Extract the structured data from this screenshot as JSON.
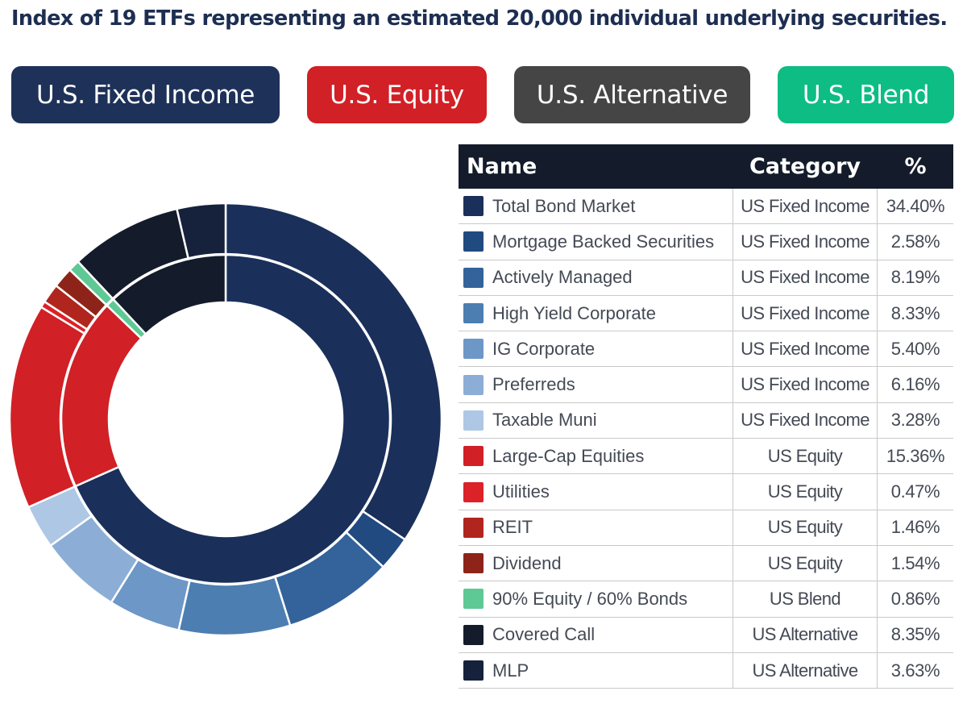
{
  "title": "Index of 19 ETFs representing an estimated 20,000 individual underlying securities.",
  "legend_pills": [
    {
      "label": "U.S. Fixed Income",
      "color": "#1e3158"
    },
    {
      "label": "U.S. Equity",
      "color": "#d12026"
    },
    {
      "label": "U.S. Alternative",
      "color": "#454545"
    },
    {
      "label": "U.S. Blend",
      "color": "#0dbd83"
    }
  ],
  "table": {
    "headers": {
      "name": "Name",
      "category": "Category",
      "pct": "%"
    }
  },
  "chart_data": {
    "type": "pie",
    "variant": "two-ring donut (outer ring: individual ETFs, inner ring: category totals)",
    "series_outer": [
      {
        "name": "Total Bond Market",
        "category": "US Fixed Income",
        "pct_label": "34.40%",
        "value": 34.4,
        "color": "#1a305a"
      },
      {
        "name": "Mortgage Backed Securities",
        "category": "US Fixed Income",
        "pct_label": "2.58%",
        "value": 2.58,
        "color": "#204a80"
      },
      {
        "name": "Actively Managed",
        "category": "US Fixed Income",
        "pct_label": "8.19%",
        "value": 8.19,
        "color": "#33639a"
      },
      {
        "name": "High Yield Corporate",
        "category": "US Fixed Income",
        "pct_label": "8.33%",
        "value": 8.33,
        "color": "#4c7eb1"
      },
      {
        "name": "IG Corporate",
        "category": "US Fixed Income",
        "pct_label": "5.40%",
        "value": 5.4,
        "color": "#6d97c7"
      },
      {
        "name": "Preferreds",
        "category": "US Fixed Income",
        "pct_label": "6.16%",
        "value": 6.16,
        "color": "#8caed6"
      },
      {
        "name": "Taxable Muni",
        "category": "US Fixed Income",
        "pct_label": "3.28%",
        "value": 3.28,
        "color": "#adc7e5"
      },
      {
        "name": "Large-Cap Equities",
        "category": "US Equity",
        "pct_label": "15.36%",
        "value": 15.36,
        "color": "#d12026"
      },
      {
        "name": "Utilities",
        "category": "US Equity",
        "pct_label": "0.47%",
        "value": 0.47,
        "color": "#db2228"
      },
      {
        "name": "REIT",
        "category": "US Equity",
        "pct_label": "1.46%",
        "value": 1.46,
        "color": "#b0261e"
      },
      {
        "name": "Dividend",
        "category": "US Equity",
        "pct_label": "1.54%",
        "value": 1.54,
        "color": "#8e2419"
      },
      {
        "name": "90% Equity / 60% Bonds",
        "category": "US Blend",
        "pct_label": "0.86%",
        "value": 0.86,
        "color": "#5ec994"
      },
      {
        "name": "Covered Call",
        "category": "US Alternative",
        "pct_label": "8.35%",
        "value": 8.35,
        "color": "#141c2b"
      },
      {
        "name": "MLP",
        "category": "US Alternative",
        "pct_label": "3.63%",
        "value": 3.63,
        "color": "#16213c"
      }
    ],
    "series_inner": [
      {
        "name": "US Fixed Income",
        "value": 68.34,
        "color": "#1a305a"
      },
      {
        "name": "US Equity",
        "value": 18.83,
        "color": "#d12026"
      },
      {
        "name": "US Blend",
        "value": 0.86,
        "color": "#5ec994"
      },
      {
        "name": "US Alternative",
        "value": 11.98,
        "color": "#141c2b"
      }
    ],
    "start_angle": "12 o'clock, clockwise"
  }
}
